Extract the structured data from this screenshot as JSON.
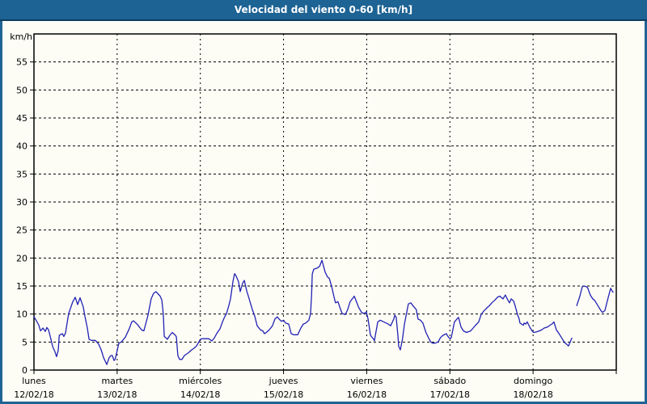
{
  "window": {
    "title": "Velocidad del viento 0-60 [km/h]"
  },
  "colors": {
    "frame": "#1d6394",
    "titlebar": "#1d6394",
    "titlebar_edge": "#0d3c5f",
    "title_text": "#ffffff",
    "plot_background": "#fdfdf6",
    "grid": "#000000",
    "axis": "#000000",
    "line": "#2222b4",
    "label_text": "#000000"
  },
  "chart_data": {
    "type": "line",
    "title": "Velocidad del viento 0-60 [km/h]",
    "ylabel": "km/h",
    "xlabel": "",
    "ylim": [
      0,
      60
    ],
    "yticks": [
      0,
      5,
      10,
      15,
      20,
      25,
      30,
      35,
      40,
      45,
      50,
      55
    ],
    "grid": "dashed",
    "legend": "none",
    "hours_per_day": 24,
    "days": [
      {
        "name": "lunes",
        "date": "12/02/18"
      },
      {
        "name": "martes",
        "date": "13/02/18"
      },
      {
        "name": "miércoles",
        "date": "14/02/18"
      },
      {
        "name": "jueves",
        "date": "15/02/18"
      },
      {
        "name": "viernes",
        "date": "16/02/18"
      },
      {
        "name": "sábado",
        "date": "17/02/18"
      },
      {
        "name": "domingo",
        "date": "18/02/18"
      }
    ],
    "series_name": "Velocidad del viento",
    "unit": "km/h",
    "segments": [
      [
        [
          0,
          9.5
        ],
        [
          0.7,
          8.8
        ],
        [
          1.4,
          8.0
        ],
        [
          1.9,
          7.0
        ],
        [
          2.6,
          7.5
        ],
        [
          3.3,
          6.9
        ],
        [
          3.7,
          7.6
        ],
        [
          4.2,
          7.2
        ],
        [
          4.9,
          5.5
        ],
        [
          5.4,
          4.2
        ],
        [
          6.1,
          3.2
        ],
        [
          6.5,
          2.4
        ],
        [
          7.0,
          3.5
        ],
        [
          7.3,
          6.2
        ],
        [
          8.2,
          6.5
        ],
        [
          8.6,
          6.0
        ],
        [
          9.1,
          6.6
        ],
        [
          10.0,
          10.1
        ],
        [
          11.2,
          12.2
        ],
        [
          11.9,
          13.0
        ],
        [
          12.6,
          11.7
        ],
        [
          13.3,
          12.9
        ],
        [
          14.2,
          11.3
        ],
        [
          14.7,
          9.6
        ],
        [
          15.4,
          7.5
        ],
        [
          15.9,
          5.5
        ],
        [
          16.6,
          5.3
        ],
        [
          17.7,
          5.3
        ],
        [
          18.7,
          4.6
        ],
        [
          19.4,
          3.6
        ],
        [
          20.1,
          2.2
        ],
        [
          21.0,
          1.0
        ],
        [
          21.7,
          2.2
        ],
        [
          22.2,
          2.6
        ],
        [
          22.6,
          2.6
        ],
        [
          23.1,
          1.7
        ],
        [
          23.4,
          1.9
        ],
        [
          23.8,
          2.9
        ],
        [
          24.5,
          4.8
        ],
        [
          25.2,
          5.0
        ],
        [
          26.4,
          5.9
        ],
        [
          27.5,
          7.4
        ],
        [
          28.2,
          8.6
        ],
        [
          28.7,
          8.8
        ],
        [
          29.9,
          8.1
        ],
        [
          31.0,
          7.2
        ],
        [
          31.7,
          7.0
        ],
        [
          32.9,
          9.8
        ],
        [
          33.8,
          12.7
        ],
        [
          34.5,
          13.7
        ],
        [
          35.2,
          14.0
        ],
        [
          36.4,
          13.2
        ],
        [
          36.9,
          12.5
        ],
        [
          37.3,
          10.0
        ],
        [
          37.6,
          6.0
        ],
        [
          38.5,
          5.5
        ],
        [
          39.2,
          6.2
        ],
        [
          39.9,
          6.7
        ],
        [
          40.8,
          6.2
        ],
        [
          41.1,
          5.9
        ],
        [
          41.5,
          2.6
        ],
        [
          42.0,
          1.9
        ],
        [
          42.7,
          1.9
        ],
        [
          43.4,
          2.6
        ],
        [
          44.6,
          3.1
        ],
        [
          45.5,
          3.6
        ],
        [
          46.2,
          3.9
        ],
        [
          46.9,
          4.3
        ],
        [
          48.0,
          5.5
        ],
        [
          48.5,
          5.6
        ],
        [
          50.4,
          5.6
        ],
        [
          51.3,
          5.2
        ],
        [
          52.0,
          5.7
        ],
        [
          52.7,
          6.5
        ],
        [
          53.7,
          7.4
        ],
        [
          54.4,
          8.6
        ],
        [
          55.1,
          9.6
        ],
        [
          55.5,
          10.0
        ],
        [
          56.2,
          11.5
        ],
        [
          56.7,
          12.7
        ],
        [
          57.4,
          15.8
        ],
        [
          57.9,
          17.2
        ],
        [
          58.3,
          16.8
        ],
        [
          59.0,
          15.8
        ],
        [
          59.5,
          14.0
        ],
        [
          60.2,
          15.5
        ],
        [
          60.7,
          16.0
        ],
        [
          61.4,
          14.1
        ],
        [
          62.1,
          12.7
        ],
        [
          63.0,
          10.8
        ],
        [
          63.7,
          9.6
        ],
        [
          64.4,
          7.9
        ],
        [
          65.3,
          7.2
        ],
        [
          66.0,
          7.0
        ],
        [
          66.5,
          6.5
        ],
        [
          67.2,
          6.8
        ],
        [
          67.9,
          7.2
        ],
        [
          68.8,
          7.9
        ],
        [
          69.5,
          9.1
        ],
        [
          70.2,
          9.5
        ],
        [
          70.7,
          9.1
        ],
        [
          71.4,
          8.7
        ],
        [
          72.0,
          8.9
        ],
        [
          72.6,
          8.4
        ],
        [
          73.5,
          8.2
        ],
        [
          74.2,
          6.5
        ],
        [
          74.9,
          6.3
        ],
        [
          76.1,
          6.3
        ],
        [
          77.0,
          7.5
        ],
        [
          77.7,
          8.2
        ],
        [
          78.4,
          8.4
        ],
        [
          79.3,
          8.9
        ],
        [
          79.8,
          10.1
        ],
        [
          80.1,
          13.5
        ],
        [
          80.3,
          17.1
        ],
        [
          80.7,
          18.0
        ],
        [
          81.7,
          18.2
        ],
        [
          82.4,
          18.5
        ],
        [
          83.1,
          19.6
        ],
        [
          84.0,
          17.5
        ],
        [
          84.7,
          16.6
        ],
        [
          85.2,
          16.4
        ],
        [
          85.9,
          14.9
        ],
        [
          86.6,
          13.0
        ],
        [
          87.0,
          12.0
        ],
        [
          87.7,
          12.2
        ],
        [
          88.2,
          11.3
        ],
        [
          88.9,
          10.1
        ],
        [
          89.8,
          9.9
        ],
        [
          90.5,
          10.8
        ],
        [
          91.2,
          12.2
        ],
        [
          92.2,
          13.0
        ],
        [
          92.4,
          13.2
        ],
        [
          93.3,
          11.8
        ],
        [
          93.6,
          11.3
        ],
        [
          94.5,
          10.3
        ],
        [
          95.2,
          10.1
        ],
        [
          95.9,
          10.4
        ],
        [
          96.4,
          9.1
        ],
        [
          97.1,
          6.2
        ],
        [
          98.0,
          5.5
        ],
        [
          98.2,
          5.2
        ],
        [
          99.2,
          8.6
        ],
        [
          99.9,
          8.9
        ],
        [
          100.6,
          8.7
        ],
        [
          102.2,
          8.2
        ],
        [
          102.9,
          7.9
        ],
        [
          103.8,
          9.1
        ],
        [
          104.1,
          9.8
        ],
        [
          104.5,
          9.4
        ],
        [
          105.0,
          6.2
        ],
        [
          105.2,
          4.3
        ],
        [
          105.7,
          3.6
        ],
        [
          106.3,
          5.5
        ],
        [
          106.9,
          8.2
        ],
        [
          108.0,
          11.8
        ],
        [
          108.7,
          12.0
        ],
        [
          109.6,
          11.3
        ],
        [
          110.3,
          10.8
        ],
        [
          110.8,
          9.1
        ],
        [
          111.5,
          8.9
        ],
        [
          112.2,
          8.4
        ],
        [
          113.1,
          6.7
        ],
        [
          113.8,
          5.8
        ],
        [
          114.5,
          5.0
        ],
        [
          115.0,
          4.8
        ],
        [
          115.7,
          4.8
        ],
        [
          116.6,
          5.0
        ],
        [
          117.3,
          5.8
        ],
        [
          118.0,
          6.2
        ],
        [
          119.0,
          6.5
        ],
        [
          119.2,
          6.2
        ],
        [
          119.7,
          5.8
        ],
        [
          120.1,
          5.6
        ],
        [
          120.4,
          5.8
        ],
        [
          121.3,
          8.6
        ],
        [
          122.0,
          9.1
        ],
        [
          122.5,
          9.4
        ],
        [
          123.2,
          7.7
        ],
        [
          123.9,
          7.0
        ],
        [
          124.8,
          6.7
        ],
        [
          126.0,
          7.0
        ],
        [
          126.7,
          7.5
        ],
        [
          127.4,
          8.0
        ],
        [
          128.3,
          8.6
        ],
        [
          129.0,
          9.9
        ],
        [
          129.7,
          10.5
        ],
        [
          130.7,
          11.1
        ],
        [
          131.4,
          11.5
        ],
        [
          132.1,
          12.0
        ],
        [
          133.0,
          12.5
        ],
        [
          133.7,
          13.0
        ],
        [
          134.4,
          13.2
        ],
        [
          135.3,
          12.7
        ],
        [
          136.0,
          13.4
        ],
        [
          136.7,
          12.5
        ],
        [
          137.2,
          12.0
        ],
        [
          137.7,
          12.7
        ],
        [
          138.4,
          12.3
        ],
        [
          138.8,
          11.5
        ],
        [
          139.5,
          9.9
        ],
        [
          140.0,
          9.1
        ],
        [
          140.2,
          8.4
        ],
        [
          141.2,
          8.0
        ],
        [
          141.4,
          8.4
        ],
        [
          141.9,
          8.2
        ],
        [
          142.3,
          8.6
        ],
        [
          143.0,
          7.7
        ],
        [
          143.7,
          7.0
        ],
        [
          144.2,
          6.7
        ],
        [
          144.9,
          6.8
        ],
        [
          145.8,
          7.0
        ],
        [
          146.5,
          7.2
        ],
        [
          147.2,
          7.5
        ],
        [
          148.2,
          7.7
        ],
        [
          148.9,
          8.0
        ],
        [
          149.6,
          8.3
        ],
        [
          150.0,
          8.6
        ],
        [
          150.7,
          7.2
        ],
        [
          151.7,
          6.3
        ],
        [
          152.4,
          5.6
        ],
        [
          153.1,
          4.9
        ],
        [
          153.5,
          4.7
        ],
        [
          154.2,
          4.3
        ],
        [
          154.7,
          5.0
        ],
        [
          155.2,
          5.7
        ]
      ],
      [
        [
          156.6,
          11.5
        ],
        [
          157.5,
          13.2
        ],
        [
          158.2,
          14.9
        ],
        [
          158.7,
          15.0
        ],
        [
          159.4,
          14.9
        ],
        [
          159.8,
          14.6
        ],
        [
          160.5,
          13.4
        ],
        [
          161.2,
          12.7
        ],
        [
          161.7,
          12.5
        ],
        [
          162.4,
          11.8
        ],
        [
          162.9,
          11.3
        ],
        [
          163.6,
          10.6
        ],
        [
          164.0,
          10.3
        ],
        [
          164.7,
          10.6
        ],
        [
          165.7,
          13.0
        ],
        [
          166.4,
          14.6
        ],
        [
          166.8,
          14.1
        ],
        [
          167.1,
          13.9
        ]
      ]
    ]
  }
}
